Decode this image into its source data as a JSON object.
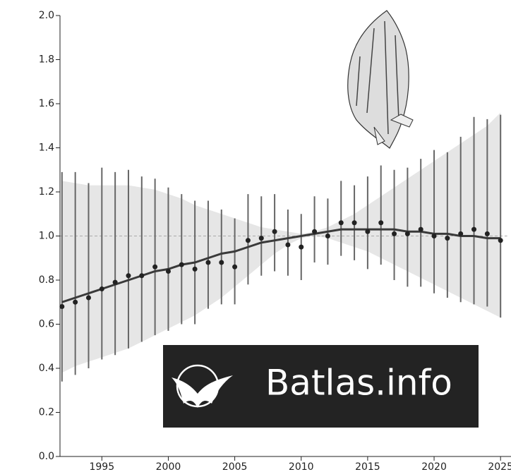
{
  "chart_data": {
    "type": "trend",
    "x": [
      1992,
      1993,
      1994,
      1995,
      1996,
      1997,
      1998,
      1999,
      2000,
      2001,
      2002,
      2003,
      2004,
      2005,
      2006,
      2007,
      2008,
      2009,
      2010,
      2011,
      2012,
      2013,
      2014,
      2015,
      2016,
      2017,
      2018,
      2019,
      2020,
      2021,
      2022,
      2023,
      2024,
      2025
    ],
    "values": [
      0.68,
      0.7,
      0.72,
      0.76,
      0.79,
      0.82,
      0.82,
      0.86,
      0.84,
      0.87,
      0.85,
      0.88,
      0.88,
      0.86,
      0.98,
      0.99,
      1.02,
      0.96,
      0.95,
      1.02,
      1.0,
      1.06,
      1.06,
      1.02,
      1.06,
      1.01,
      1.01,
      1.03,
      1.0,
      0.99,
      1.01,
      1.03,
      1.01,
      0.98
    ],
    "lower": [
      0.34,
      0.37,
      0.4,
      0.44,
      0.46,
      0.49,
      0.52,
      0.55,
      0.57,
      0.6,
      0.6,
      0.67,
      0.69,
      0.69,
      0.78,
      0.82,
      0.84,
      0.82,
      0.8,
      0.88,
      0.87,
      0.91,
      0.89,
      0.85,
      0.87,
      0.8,
      0.77,
      0.77,
      0.74,
      0.72,
      0.7,
      0.69,
      0.68,
      0.63
    ],
    "upper": [
      1.29,
      1.29,
      1.24,
      1.31,
      1.29,
      1.3,
      1.27,
      1.26,
      1.22,
      1.19,
      1.16,
      1.16,
      1.12,
      1.08,
      1.19,
      1.18,
      1.19,
      1.12,
      1.1,
      1.18,
      1.17,
      1.25,
      1.23,
      1.27,
      1.32,
      1.3,
      1.31,
      1.35,
      1.39,
      1.38,
      1.45,
      1.54,
      1.53,
      1.55
    ],
    "trend": [
      0.7,
      0.72,
      0.74,
      0.76,
      0.78,
      0.8,
      0.82,
      0.84,
      0.85,
      0.87,
      0.88,
      0.9,
      0.92,
      0.93,
      0.95,
      0.97,
      0.98,
      0.99,
      1.0,
      1.01,
      1.02,
      1.03,
      1.03,
      1.03,
      1.03,
      1.03,
      1.02,
      1.02,
      1.01,
      1.01,
      1.0,
      1.0,
      0.99,
      0.99
    ],
    "trend_lower": [
      0.38,
      0.41,
      0.43,
      0.45,
      0.47,
      0.49,
      0.52,
      0.55,
      0.58,
      0.61,
      0.64,
      0.68,
      0.72,
      0.77,
      0.82,
      0.87,
      0.92,
      0.96,
      0.99,
      1.0,
      0.99,
      0.97,
      0.95,
      0.93,
      0.9,
      0.87,
      0.84,
      0.81,
      0.78,
      0.75,
      0.72,
      0.69,
      0.66,
      0.63
    ],
    "trend_upper": [
      1.25,
      1.24,
      1.23,
      1.23,
      1.23,
      1.23,
      1.22,
      1.21,
      1.19,
      1.17,
      1.14,
      1.12,
      1.1,
      1.08,
      1.06,
      1.04,
      1.03,
      1.02,
      1.01,
      1.02,
      1.04,
      1.07,
      1.1,
      1.14,
      1.18,
      1.22,
      1.26,
      1.3,
      1.34,
      1.38,
      1.42,
      1.46,
      1.5,
      1.56
    ],
    "reference_line": 1,
    "color": "#3a3a3a",
    "band_color": "#e6e6e6",
    "xlim": [
      1991.85,
      2025.5
    ],
    "xticks": [
      1995,
      2000,
      2005,
      2010,
      2015,
      2020,
      2025
    ],
    "ylim": [
      0,
      2
    ],
    "yticks": [
      {
        "value": 0,
        "label": "0.0"
      },
      {
        "value": 0.2,
        "label": "0.2"
      },
      {
        "value": 0.4,
        "label": "0.4"
      },
      {
        "value": 0.6,
        "label": "0.6"
      },
      {
        "value": 0.8,
        "label": "0.8"
      },
      {
        "value": 1,
        "label": "1.0"
      },
      {
        "value": 1.2,
        "label": "1.2"
      },
      {
        "value": 1.4,
        "label": "1.4"
      },
      {
        "value": 1.6,
        "label": "1.6"
      },
      {
        "value": 1.8,
        "label": "1.8"
      },
      {
        "value": 2,
        "label": "2.0"
      }
    ]
  },
  "logo": {
    "text": "Batlas.info"
  }
}
